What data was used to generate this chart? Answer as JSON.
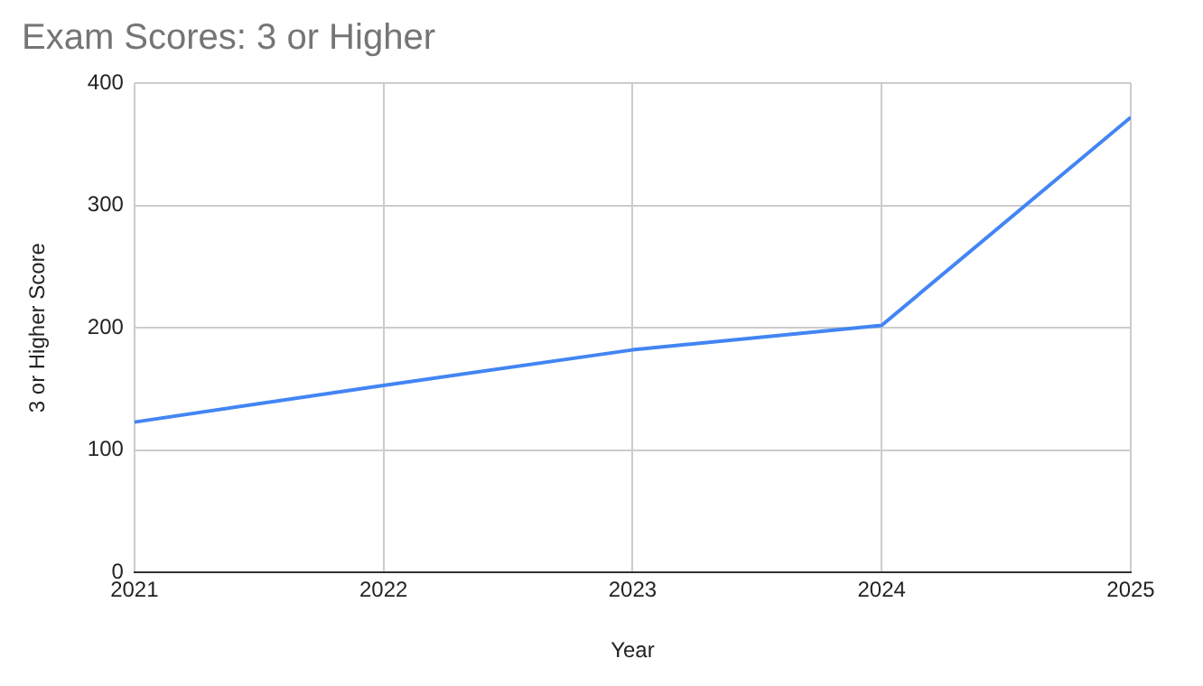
{
  "chart_data": {
    "type": "line",
    "title": "Exam Scores: 3 or Higher",
    "xlabel": "Year",
    "ylabel": "3 or Higher Score",
    "x": [
      2021,
      2022,
      2023,
      2024,
      2025
    ],
    "series": [
      {
        "color": "#4285f4",
        "values": [
          123,
          153,
          182,
          202,
          372
        ]
      }
    ],
    "xlim": [
      2021,
      2025
    ],
    "xticks": [
      2021,
      2022,
      2023,
      2024,
      2025
    ],
    "ylim": [
      0,
      400
    ],
    "yticks": [
      0,
      100,
      200,
      300,
      400
    ],
    "grid": true,
    "legend": false,
    "marker": "none",
    "line_style": "solid"
  }
}
